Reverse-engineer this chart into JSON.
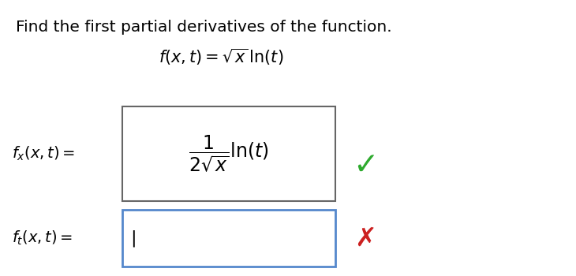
{
  "title": "Find the first partial derivatives of the function.",
  "function_label": "$f(x, t) = \\sqrt{x}\\,\\ln(t)$",
  "fx_label": "$f_x(x, t) =$",
  "fx_answer": "$\\dfrac{1}{2\\sqrt{x}}\\ln(t)$",
  "ft_label": "$f_t(x, t) =$",
  "bg_color": "#ffffff",
  "box1_edge_color": "#666666",
  "box2_edge_color": "#5588cc",
  "checkmark_color": "#2eaa2e",
  "xmark_color": "#cc2020",
  "title_fontsize": 14.5,
  "func_fontsize": 15,
  "answer_fontsize": 17,
  "label_fontsize": 14
}
